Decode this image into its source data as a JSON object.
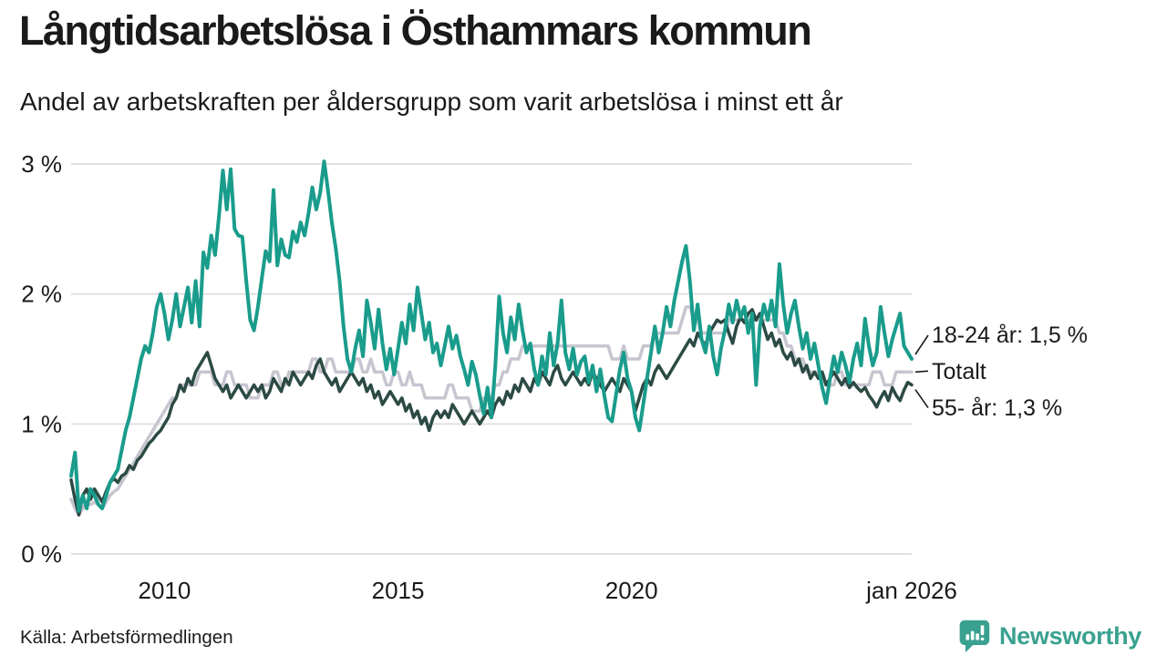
{
  "header": {
    "title": "Långtidsarbetslösa i Östhammars kommun",
    "subtitle": "Andel av arbetskraften per åldersgrupp som varit arbetslösa i minst ett år"
  },
  "footer": {
    "source": "Källa: Arbetsförmedlingen",
    "brand": "Newsworthy"
  },
  "colors": {
    "line_18_24": "#1a9c8c",
    "line_55": "#2b4a43",
    "line_total": "#c7c5d0",
    "grid": "#e1e1e4",
    "text": "#1a1a1a",
    "brand_teal": "#3aa190",
    "connector": "#1a1a1a"
  },
  "chart_data": {
    "type": "line",
    "title": "Långtidsarbetslösa i Östhammars kommun",
    "subtitle": "Andel av arbetskraften per åldersgrupp som varit arbetslösa i minst ett år",
    "x_unit": "month",
    "x_start": 2008.0,
    "x_end": 2026.0,
    "ylim": [
      0,
      3
    ],
    "grid": "horizontal",
    "legend_position": "right-end-labels",
    "yticks": [
      {
        "label": "0 %",
        "value": 0
      },
      {
        "label": "1 %",
        "value": 1
      },
      {
        "label": "2 %",
        "value": 2
      },
      {
        "label": "3 %",
        "value": 3
      }
    ],
    "xticks": [
      {
        "label": "2010",
        "year": 2010
      },
      {
        "label": "2015",
        "year": 2015
      },
      {
        "label": "2020",
        "year": 2020
      },
      {
        "label": "jan 2026",
        "year": 2026
      }
    ],
    "series": [
      {
        "name": "Totalt",
        "color": "#c7c5d0",
        "width": 3.5,
        "values": [
          0.42,
          0.35,
          0.3,
          0.35,
          0.4,
          0.38,
          0.4,
          0.38,
          0.35,
          0.4,
          0.45,
          0.48,
          0.5,
          0.55,
          0.6,
          0.65,
          0.7,
          0.75,
          0.8,
          0.85,
          0.9,
          0.95,
          1.0,
          1.05,
          1.1,
          1.15,
          1.2,
          1.2,
          1.3,
          1.3,
          1.3,
          1.3,
          1.3,
          1.4,
          1.4,
          1.4,
          1.4,
          1.3,
          1.3,
          1.3,
          1.4,
          1.4,
          1.3,
          1.3,
          1.3,
          1.3,
          1.2,
          1.2,
          1.2,
          1.3,
          1.3,
          1.3,
          1.4,
          1.4,
          1.3,
          1.3,
          1.4,
          1.4,
          1.4,
          1.4,
          1.4,
          1.4,
          1.5,
          1.5,
          1.4,
          1.4,
          1.5,
          1.5,
          1.4,
          1.4,
          1.4,
          1.4,
          1.4,
          1.5,
          1.5,
          1.4,
          1.4,
          1.5,
          1.4,
          1.4,
          1.4,
          1.3,
          1.3,
          1.4,
          1.4,
          1.3,
          1.3,
          1.4,
          1.3,
          1.3,
          1.3,
          1.2,
          1.2,
          1.2,
          1.2,
          1.2,
          1.2,
          1.3,
          1.3,
          1.2,
          1.2,
          1.2,
          1.2,
          1.1,
          1.1,
          1.1,
          1.2,
          1.2,
          1.2,
          1.3,
          1.3,
          1.4,
          1.4,
          1.5,
          1.5,
          1.5,
          1.6,
          1.6,
          1.6,
          1.6,
          1.6,
          1.6,
          1.6,
          1.6,
          1.6,
          1.6,
          1.6,
          1.6,
          1.6,
          1.6,
          1.6,
          1.6,
          1.6,
          1.6,
          1.6,
          1.6,
          1.6,
          1.6,
          1.6,
          1.5,
          1.5,
          1.5,
          1.6,
          1.5,
          1.5,
          1.5,
          1.5,
          1.6,
          1.6,
          1.6,
          1.7,
          1.7,
          1.7,
          1.7,
          1.7,
          1.7,
          1.7,
          1.8,
          1.9,
          1.9,
          1.8,
          1.8,
          1.7,
          1.7,
          1.7,
          1.7,
          1.7,
          1.7,
          1.7,
          1.8,
          1.8,
          1.8,
          1.8,
          1.8,
          1.8,
          1.8,
          1.8,
          1.8,
          1.8,
          1.8,
          1.8,
          1.8,
          1.7,
          1.7,
          1.6,
          1.6,
          1.5,
          1.5,
          1.5,
          1.4,
          1.4,
          1.4,
          1.4,
          1.4,
          1.3,
          1.3,
          1.3,
          1.4,
          1.4,
          1.3,
          1.3,
          1.3,
          1.3,
          1.3,
          1.3,
          1.3,
          1.4,
          1.4,
          1.4,
          1.3,
          1.3,
          1.3,
          1.4,
          1.4,
          1.4,
          1.4,
          1.4
        ]
      },
      {
        "name": "55- år",
        "color": "#2b4a43",
        "width": 3.5,
        "values": [
          0.57,
          0.42,
          0.3,
          0.45,
          0.5,
          0.42,
          0.5,
          0.45,
          0.4,
          0.48,
          0.55,
          0.58,
          0.55,
          0.6,
          0.62,
          0.68,
          0.65,
          0.72,
          0.75,
          0.8,
          0.85,
          0.88,
          0.92,
          0.95,
          1.0,
          1.05,
          1.15,
          1.2,
          1.3,
          1.25,
          1.35,
          1.3,
          1.4,
          1.45,
          1.5,
          1.55,
          1.45,
          1.35,
          1.3,
          1.25,
          1.3,
          1.2,
          1.25,
          1.3,
          1.25,
          1.2,
          1.25,
          1.3,
          1.25,
          1.3,
          1.2,
          1.25,
          1.35,
          1.3,
          1.25,
          1.35,
          1.3,
          1.4,
          1.35,
          1.3,
          1.35,
          1.4,
          1.35,
          1.45,
          1.5,
          1.4,
          1.35,
          1.3,
          1.35,
          1.25,
          1.3,
          1.35,
          1.4,
          1.35,
          1.3,
          1.35,
          1.25,
          1.3,
          1.2,
          1.25,
          1.15,
          1.2,
          1.25,
          1.2,
          1.15,
          1.2,
          1.1,
          1.15,
          1.05,
          1.1,
          1.0,
          1.05,
          0.95,
          1.05,
          1.1,
          1.05,
          1.1,
          1.05,
          1.15,
          1.1,
          1.05,
          1.0,
          1.05,
          1.1,
          1.05,
          1.0,
          1.05,
          1.1,
          1.05,
          1.15,
          1.2,
          1.15,
          1.25,
          1.2,
          1.3,
          1.25,
          1.35,
          1.3,
          1.25,
          1.35,
          1.3,
          1.4,
          1.35,
          1.3,
          1.4,
          1.45,
          1.35,
          1.3,
          1.35,
          1.4,
          1.35,
          1.3,
          1.35,
          1.3,
          1.4,
          1.35,
          1.3,
          1.25,
          1.3,
          1.35,
          1.3,
          1.25,
          1.35,
          1.3,
          1.25,
          1.1,
          1.2,
          1.3,
          1.35,
          1.3,
          1.4,
          1.45,
          1.4,
          1.35,
          1.4,
          1.45,
          1.5,
          1.55,
          1.6,
          1.65,
          1.6,
          1.7,
          1.65,
          1.6,
          1.7,
          1.75,
          1.8,
          1.78,
          1.8,
          1.7,
          1.62,
          1.75,
          1.82,
          1.78,
          1.85,
          1.88,
          1.8,
          1.85,
          1.75,
          1.65,
          1.7,
          1.6,
          1.65,
          1.55,
          1.5,
          1.55,
          1.45,
          1.5,
          1.4,
          1.45,
          1.35,
          1.4,
          1.35,
          1.4,
          1.3,
          1.35,
          1.4,
          1.35,
          1.3,
          1.35,
          1.28,
          1.32,
          1.28,
          1.25,
          1.28,
          1.22,
          1.18,
          1.13,
          1.2,
          1.25,
          1.18,
          1.28,
          1.22,
          1.18,
          1.26,
          1.32,
          1.3
        ]
      },
      {
        "name": "18-24 år",
        "color": "#1a9c8c",
        "width": 4,
        "values": [
          0.6,
          0.78,
          0.33,
          0.45,
          0.35,
          0.5,
          0.45,
          0.38,
          0.35,
          0.45,
          0.55,
          0.6,
          0.65,
          0.8,
          0.95,
          1.05,
          1.2,
          1.35,
          1.5,
          1.6,
          1.55,
          1.7,
          1.9,
          2.0,
          1.85,
          1.65,
          1.8,
          2.0,
          1.75,
          1.9,
          2.05,
          1.78,
          2.1,
          1.75,
          2.32,
          2.2,
          2.45,
          2.3,
          2.6,
          2.95,
          2.65,
          2.96,
          2.5,
          2.45,
          2.44,
          2.1,
          1.8,
          1.72,
          1.9,
          2.12,
          2.33,
          2.25,
          2.8,
          2.22,
          2.42,
          2.3,
          2.28,
          2.48,
          2.4,
          2.55,
          2.45,
          2.62,
          2.82,
          2.65,
          2.78,
          3.02,
          2.8,
          2.55,
          2.35,
          2.1,
          1.75,
          1.5,
          1.4,
          1.58,
          1.72,
          1.52,
          1.95,
          1.78,
          1.58,
          1.88,
          1.62,
          1.42,
          1.58,
          1.38,
          1.58,
          1.78,
          1.62,
          1.92,
          1.72,
          2.05,
          1.85,
          1.65,
          1.78,
          1.55,
          1.62,
          1.45,
          1.6,
          1.75,
          1.58,
          1.68,
          1.52,
          1.42,
          1.3,
          1.48,
          1.38,
          1.22,
          1.08,
          1.28,
          1.05,
          1.45,
          1.98,
          1.7,
          1.55,
          1.82,
          1.65,
          1.92,
          1.72,
          1.55,
          1.62,
          1.42,
          1.3,
          1.52,
          1.38,
          1.7,
          1.45,
          1.62,
          1.95,
          1.55,
          1.42,
          1.58,
          1.38,
          1.48,
          1.52,
          1.32,
          1.45,
          1.25,
          1.42,
          1.22,
          1.05,
          1.02,
          1.22,
          1.42,
          1.55,
          1.35,
          1.25,
          1.05,
          0.95,
          1.15,
          1.35,
          1.55,
          1.75,
          1.55,
          1.7,
          1.9,
          1.75,
          1.95,
          2.1,
          2.25,
          2.37,
          2.1,
          1.72,
          1.92,
          1.65,
          1.55,
          1.75,
          1.52,
          1.38,
          1.58,
          1.72,
          1.92,
          1.78,
          1.95,
          1.82,
          1.9,
          1.7,
          1.85,
          1.3,
          1.75,
          1.92,
          1.8,
          1.95,
          1.75,
          2.23,
          1.92,
          1.7,
          1.85,
          1.95,
          1.75,
          1.58,
          1.7,
          1.5,
          1.62,
          1.45,
          1.28,
          1.16,
          1.35,
          1.52,
          1.4,
          1.55,
          1.45,
          1.32,
          1.5,
          1.62,
          1.45,
          1.81,
          1.6,
          1.45,
          1.55,
          1.9,
          1.7,
          1.52,
          1.65,
          1.75,
          1.85,
          1.6,
          1.55,
          1.5
        ]
      }
    ],
    "annotations": [
      {
        "label": "18-24 år: 1,5 %",
        "series": "18-24 år"
      },
      {
        "label": "Totalt",
        "series": "Totalt"
      },
      {
        "label": "55- år: 1,3 %",
        "series": "55- år"
      }
    ]
  }
}
